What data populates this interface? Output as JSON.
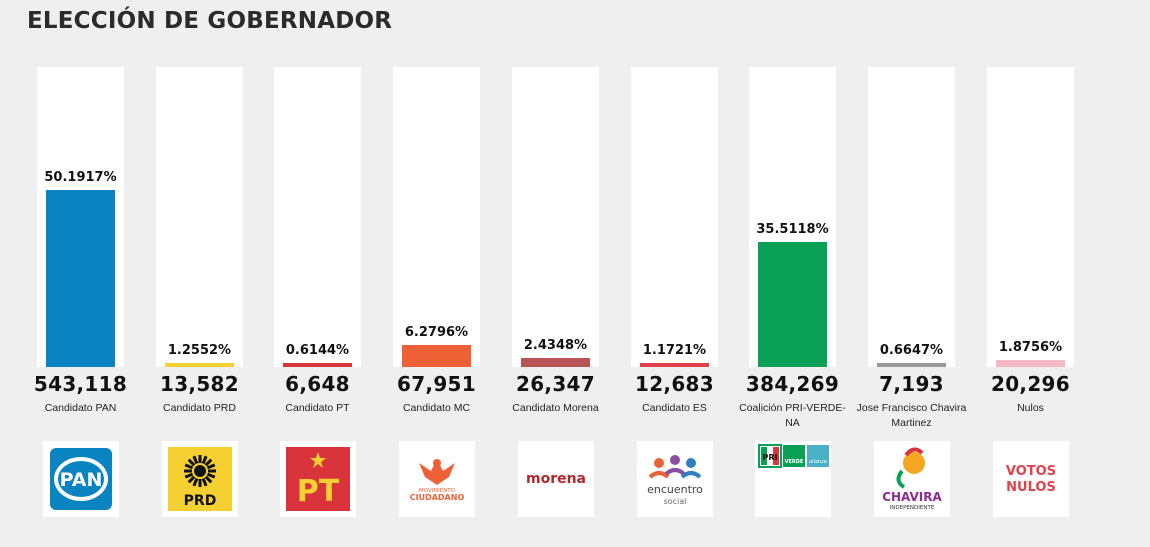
{
  "header": {
    "title": "ELECCIÓN DE GOBERNADOR"
  },
  "chart_data": {
    "type": "bar",
    "categories": [
      "Candidato PAN",
      "Candidato PRD",
      "Candidato PT",
      "Candidato MC",
      "Candidato Morena",
      "Candidato ES",
      "Coalición PRI-VERDE-NA",
      "Jose Francisco Chavira Martinez",
      "Nulos"
    ],
    "values": [
      50.1917,
      1.2552,
      0.6144,
      6.2796,
      2.4348,
      1.1721,
      35.5118,
      0.6647,
      1.8756
    ],
    "pct_labels": [
      "50.1917%",
      "1.2552%",
      "0.6144%",
      "6.2796%",
      "2.4348%",
      "1.1721%",
      "35.5118%",
      "0.6647%",
      "1.8756%"
    ],
    "votes": [
      "543,118",
      "13,582",
      "6,648",
      "67,951",
      "26,347",
      "12,683",
      "384,269",
      "7,193",
      "20,296"
    ],
    "colors": [
      "#0a84c1",
      "#f5d033",
      "#d9333b",
      "#ee6136",
      "#b85456",
      "#e0414a",
      "#0aa156",
      "#999999",
      "#f2b9c4"
    ],
    "ylim": [
      0,
      85
    ]
  },
  "logos": [
    {
      "icon": "pan-logo-icon",
      "text": "PAN"
    },
    {
      "icon": "prd-logo-icon",
      "text": "PRD"
    },
    {
      "icon": "pt-logo-icon",
      "text": "PT"
    },
    {
      "icon": "movimiento-ciudadano-logo-icon",
      "text": "MOVIMIENTO CIUDADANO"
    },
    {
      "icon": "morena-logo-icon",
      "text": "morena"
    },
    {
      "icon": "encuentro-social-logo-icon",
      "text": "encuentro social"
    },
    {
      "icon": "pri-verde-na-logo-icon",
      "text": "PRI VERDE alianza"
    },
    {
      "icon": "chavira-logo-icon",
      "text": "CHAVIRA INDEPENDIENTE"
    },
    {
      "icon": "votos-nulos-logo-icon",
      "text": "VOTOS NULOS"
    }
  ]
}
